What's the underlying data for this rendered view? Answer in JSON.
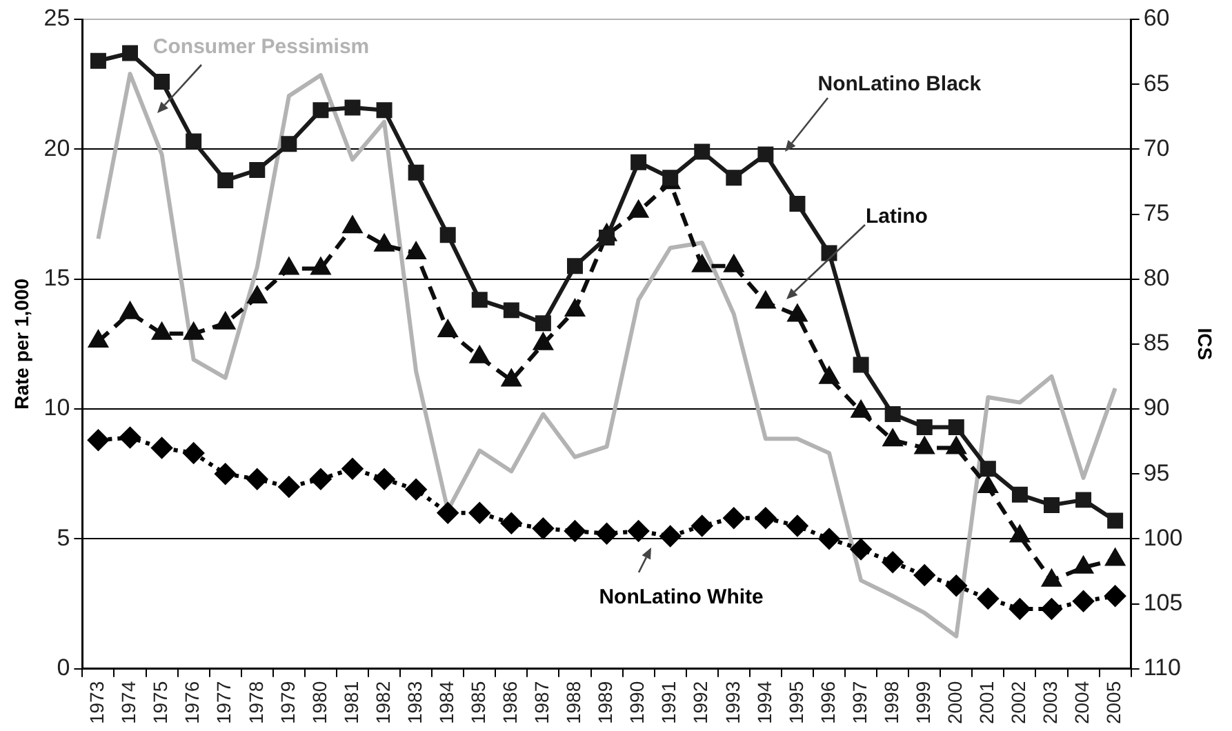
{
  "chart_data": {
    "type": "line",
    "ylabel": "Rate per 1,000",
    "y2label": "ICS",
    "categories": [
      "1973",
      "1974",
      "1975",
      "1976",
      "1977",
      "1978",
      "1979",
      "1980",
      "1981",
      "1982",
      "1983",
      "1984",
      "1985",
      "1986",
      "1987",
      "1988",
      "1989",
      "1990",
      "1991",
      "1992",
      "1993",
      "1994",
      "1995",
      "1996",
      "1997",
      "1998",
      "1999",
      "2000",
      "2001",
      "2002",
      "2003",
      "2004",
      "2005"
    ],
    "series": [
      {
        "name": "NonLatino Black",
        "color": "#1a1a1a",
        "marker": "square",
        "line_style": "solid",
        "values": [
          23.4,
          23.7,
          22.6,
          20.3,
          18.8,
          19.2,
          20.2,
          21.5,
          21.6,
          21.5,
          19.1,
          16.7,
          14.2,
          13.8,
          13.3,
          15.5,
          16.6,
          19.5,
          18.9,
          19.9,
          18.9,
          19.8,
          17.9,
          16.0,
          11.7,
          9.8,
          9.3,
          9.3,
          7.7,
          6.7,
          6.3,
          6.5,
          5.7
        ]
      },
      {
        "name": "Latino",
        "color": "#0d0d0d",
        "marker": "triangle",
        "line_style": "dashed",
        "values": [
          12.6,
          13.7,
          12.9,
          12.9,
          13.3,
          14.3,
          15.4,
          15.4,
          17.0,
          16.3,
          16.0,
          13.0,
          12.0,
          11.1,
          12.5,
          13.8,
          16.7,
          17.6,
          18.7,
          15.5,
          15.5,
          14.1,
          13.6,
          11.2,
          9.9,
          8.8,
          8.5,
          8.5,
          7.0,
          5.1,
          3.4,
          3.9,
          4.2
        ]
      },
      {
        "name": "NonLatino White",
        "color": "#000000",
        "marker": "diamond",
        "line_style": "dotted",
        "values": [
          8.8,
          8.9,
          8.5,
          8.3,
          7.5,
          7.3,
          7.0,
          7.3,
          7.7,
          7.3,
          6.9,
          6.0,
          6.0,
          5.6,
          5.4,
          5.3,
          5.2,
          5.3,
          5.1,
          5.5,
          5.8,
          5.8,
          5.5,
          5.0,
          4.6,
          4.1,
          3.6,
          3.2,
          2.7,
          2.3,
          2.3,
          2.6,
          2.8
        ]
      },
      {
        "name": "Consumer Pessimism",
        "color": "#b3b3b3",
        "marker": "none",
        "line_style": "solid",
        "axis": "y2",
        "values": [
          76.9,
          64.2,
          70.4,
          86.2,
          87.6,
          79.1,
          65.9,
          64.3,
          70.8,
          67.9,
          87.1,
          97.8,
          93.2,
          94.8,
          90.4,
          93.7,
          92.9,
          81.6,
          77.6,
          77.2,
          82.7,
          92.3,
          92.3,
          93.4,
          103.2,
          104.4,
          105.7,
          107.5,
          89.1,
          89.5,
          87.5,
          95.3,
          88.4
        ]
      }
    ],
    "ylim": [
      0,
      25
    ],
    "yticks": [
      0,
      5,
      10,
      15,
      20,
      25
    ],
    "y2lim": [
      110,
      60
    ],
    "y2ticks": [
      60,
      65,
      70,
      75,
      80,
      85,
      90,
      95,
      100,
      105,
      110
    ],
    "grid": "y",
    "legend": false
  }
}
